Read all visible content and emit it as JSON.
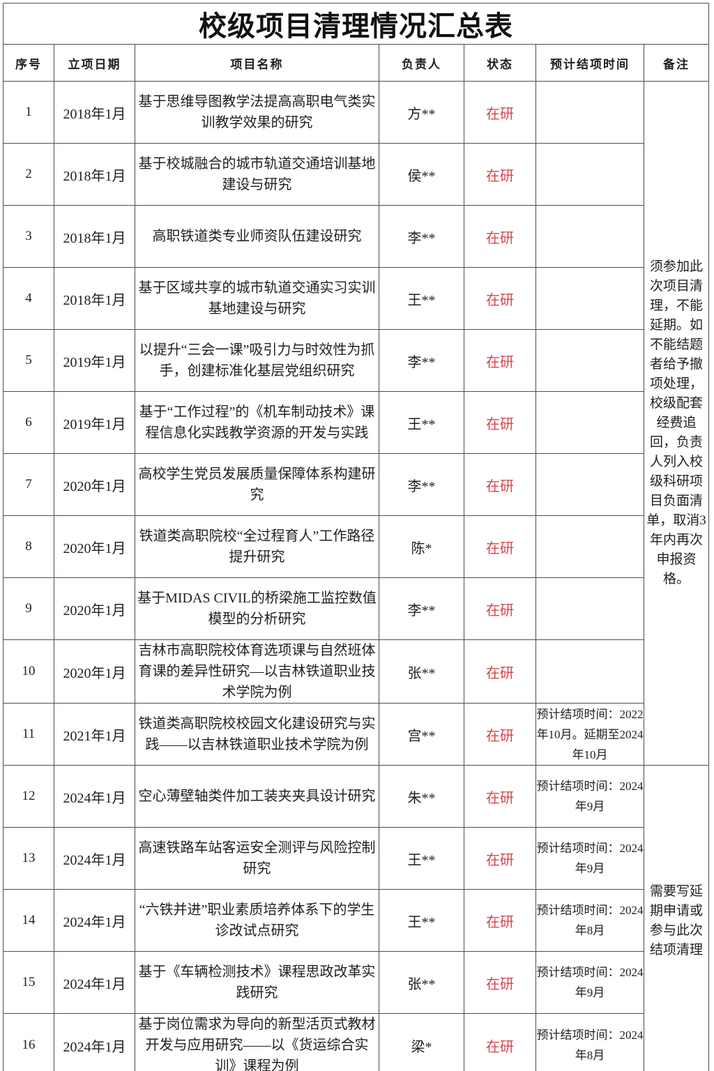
{
  "title": "校级项目清理情况汇总表",
  "status_color": "#d8414a",
  "columns": [
    {
      "key": "no",
      "label": "序号"
    },
    {
      "key": "date",
      "label": "立项日期"
    },
    {
      "key": "name",
      "label": "项目名称"
    },
    {
      "key": "leader",
      "label": "负责人"
    },
    {
      "key": "status",
      "label": "状态"
    },
    {
      "key": "end",
      "label": "预计结项时间"
    },
    {
      "key": "remark",
      "label": "备注"
    }
  ],
  "rows": [
    {
      "no": "1",
      "date": "2018年1月",
      "name": "基于思维导图教学法提高高职电气类实训教学效果的研究",
      "leader": "方**",
      "status": "在研",
      "end": ""
    },
    {
      "no": "2",
      "date": "2018年1月",
      "name": "基于校城融合的城市轨道交通培训基地建设与研究",
      "leader": "侯**",
      "status": "在研",
      "end": ""
    },
    {
      "no": "3",
      "date": "2018年1月",
      "name": "高职铁道类专业师资队伍建设研究",
      "leader": "李**",
      "status": "在研",
      "end": ""
    },
    {
      "no": "4",
      "date": "2018年1月",
      "name": "基于区域共享的城市轨道交通实习实训基地建设与研究",
      "leader": "王**",
      "status": "在研",
      "end": ""
    },
    {
      "no": "5",
      "date": "2019年1月",
      "name": "以提升“三会一课”吸引力与时效性为抓手，创建标准化基层党组织研究",
      "leader": "李**",
      "status": "在研",
      "end": ""
    },
    {
      "no": "6",
      "date": "2019年1月",
      "name": "基于“工作过程”的《机车制动技术》课程信息化实践教学资源的开发与实践",
      "leader": "王**",
      "status": "在研",
      "end": ""
    },
    {
      "no": "7",
      "date": "2020年1月",
      "name": "高校学生党员发展质量保障体系构建研究",
      "leader": "李**",
      "status": "在研",
      "end": ""
    },
    {
      "no": "8",
      "date": "2020年1月",
      "name": "铁道类高职院校“全过程育人”工作路径提升研究",
      "leader": "陈*",
      "status": "在研",
      "end": ""
    },
    {
      "no": "9",
      "date": "2020年1月",
      "name": "基于MIDAS CIVIL的桥梁施工监控数值模型的分析研究",
      "leader": "李**",
      "status": "在研",
      "end": ""
    },
    {
      "no": "10",
      "date": "2020年1月",
      "name": "吉林市高职院校体育选项课与自然班体育课的差异性研究—以吉林铁道职业技术学院为例",
      "leader": "张**",
      "status": "在研",
      "end": ""
    },
    {
      "no": "11",
      "date": "2021年1月",
      "name": "铁道类高职院校校园文化建设研究与实践——以吉林铁道职业技术学院为例",
      "leader": "宫**",
      "status": "在研",
      "end": "预计结项时间：2022年10月。延期至2024年10月"
    },
    {
      "no": "12",
      "date": "2024年1月",
      "name": "空心薄壁轴类件加工装夹夹具设计研究",
      "leader": "朱**",
      "status": "在研",
      "end": "预计结项时间：2024年9月"
    },
    {
      "no": "13",
      "date": "2024年1月",
      "name": "高速铁路车站客运安全测评与风险控制研究",
      "leader": "王**",
      "status": "在研",
      "end": "预计结项时间：2024年9月"
    },
    {
      "no": "14",
      "date": "2024年1月",
      "name": "“六铁并进”职业素质培养体系下的学生诊改试点研究",
      "leader": "王**",
      "status": "在研",
      "end": "预计结项时间：2024年8月"
    },
    {
      "no": "15",
      "date": "2024年1月",
      "name": "基于《车辆检测技术》课程思政改革实践研究",
      "leader": "张**",
      "status": "在研",
      "end": "预计结项时间：2024年9月"
    },
    {
      "no": "16",
      "date": "2024年1月",
      "name": "基于岗位需求为导向的新型活页式教材开发与应用研究——以《货运综合实训》课程为例",
      "leader": "梁*",
      "status": "在研",
      "end": "预计结项时间：2024年8月"
    }
  ],
  "remarks": [
    {
      "rows": "1-11",
      "span": 11,
      "text": "须参加此次项目清理，不能延期。如不能结题者给予撤项处理，校级配套经费追回，负责人列入校级科研项目负面清单，取消3年内再次申报资格。"
    },
    {
      "rows": "12-16",
      "span": 5,
      "text": "需要写延期申请或参与此次结项清理"
    }
  ]
}
